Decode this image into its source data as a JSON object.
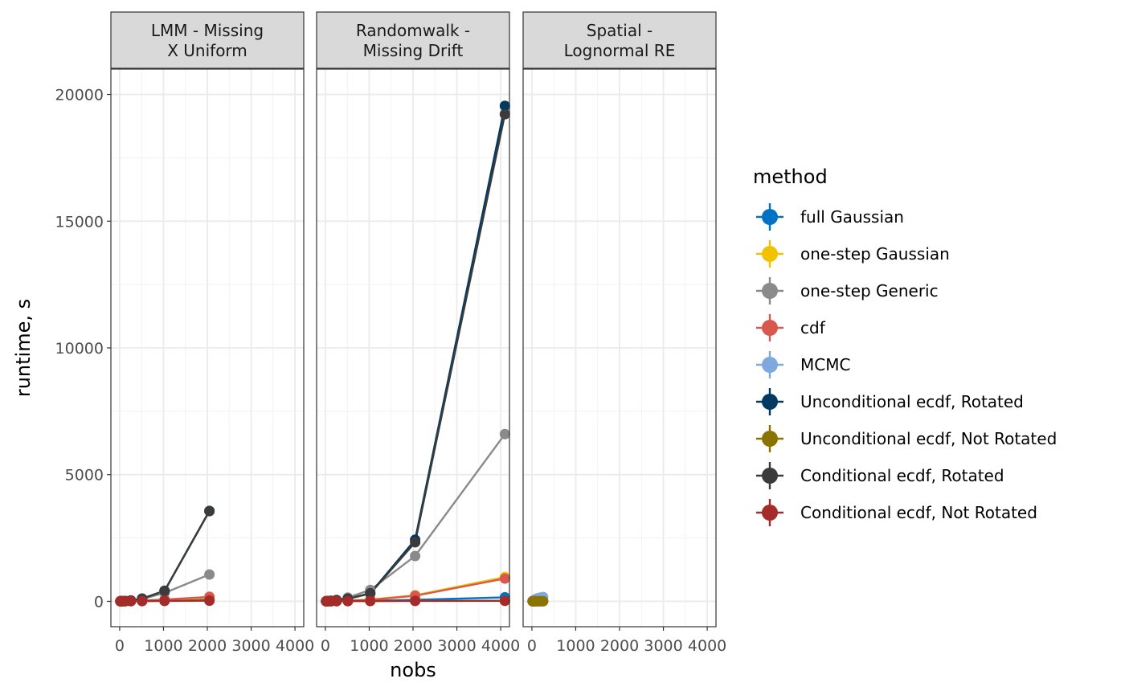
{
  "chart_data": {
    "type": "line",
    "facet_by": "scenario",
    "xlabel": "nobs",
    "ylabel": "runtime, s",
    "xlim": [
      -200,
      4200
    ],
    "ylim": [
      -1000,
      21000
    ],
    "xticks": [
      0,
      1000,
      2000,
      3000,
      4000
    ],
    "xtick_labels": [
      "0",
      "1000",
      "2000",
      "3000",
      "4000"
    ],
    "yticks": [
      0,
      5000,
      10000,
      15000,
      20000
    ],
    "ytick_labels": [
      "0",
      "5000",
      "10000",
      "15000",
      "20000"
    ],
    "grid": true,
    "legend": {
      "title": "method",
      "position": "right"
    },
    "methods": [
      {
        "name": "full Gaussian",
        "color": "#0072C6"
      },
      {
        "name": "one-step Gaussian",
        "color": "#F2C200"
      },
      {
        "name": "one-step Generic",
        "color": "#8A8A8A"
      },
      {
        "name": "cdf",
        "color": "#D9584E"
      },
      {
        "name": "MCMC",
        "color": "#7FA9DE"
      },
      {
        "name": "Unconditional ecdf, Rotated",
        "color": "#003A63"
      },
      {
        "name": "Unconditional ecdf, Not Rotated",
        "color": "#8B7300"
      },
      {
        "name": "Conditional ecdf, Rotated",
        "color": "#3B3B3B"
      },
      {
        "name": "Conditional ecdf, Not Rotated",
        "color": "#A52A2A"
      }
    ],
    "panels": [
      {
        "title_lines": [
          "LMM - Missing",
          "X Uniform"
        ],
        "series": [
          {
            "method": 0,
            "points": [
              [
                16,
                5
              ],
              [
                32,
                5
              ],
              [
                64,
                5
              ],
              [
                128,
                8
              ],
              [
                256,
                12
              ],
              [
                512,
                20
              ],
              [
                1024,
                35
              ],
              [
                2048,
                60
              ]
            ]
          },
          {
            "method": 1,
            "points": [
              [
                16,
                5
              ],
              [
                32,
                5
              ],
              [
                64,
                5
              ],
              [
                128,
                8
              ],
              [
                256,
                15
              ],
              [
                512,
                30
              ],
              [
                1024,
                60
              ],
              [
                2048,
                150
              ]
            ]
          },
          {
            "method": 2,
            "points": [
              [
                16,
                5
              ],
              [
                32,
                5
              ],
              [
                64,
                8
              ],
              [
                128,
                12
              ],
              [
                256,
                30
              ],
              [
                512,
                90
              ],
              [
                1024,
                330
              ],
              [
                2048,
                1060
              ]
            ]
          },
          {
            "method": 3,
            "points": [
              [
                16,
                5
              ],
              [
                32,
                5
              ],
              [
                64,
                5
              ],
              [
                128,
                8
              ],
              [
                256,
                15
              ],
              [
                512,
                30
              ],
              [
                1024,
                70
              ],
              [
                2048,
                180
              ]
            ]
          },
          {
            "method": 4,
            "points": [
              [
                16,
                5
              ],
              [
                32,
                5
              ],
              [
                64,
                5
              ],
              [
                128,
                5
              ],
              [
                256,
                8
              ],
              [
                512,
                10
              ],
              [
                1024,
                15
              ],
              [
                2048,
                20
              ]
            ]
          },
          {
            "method": 5,
            "points": [
              [
                16,
                5
              ],
              [
                32,
                5
              ],
              [
                64,
                8
              ],
              [
                128,
                15
              ],
              [
                256,
                35
              ],
              [
                512,
                110
              ],
              [
                1024,
                420
              ],
              [
                2048,
                3570
              ]
            ]
          },
          {
            "method": 6,
            "points": [
              [
                16,
                5
              ],
              [
                32,
                5
              ],
              [
                64,
                5
              ],
              [
                128,
                5
              ],
              [
                256,
                8
              ],
              [
                512,
                12
              ],
              [
                1024,
                20
              ],
              [
                2048,
                40
              ]
            ]
          },
          {
            "method": 7,
            "points": [
              [
                16,
                5
              ],
              [
                32,
                5
              ],
              [
                64,
                8
              ],
              [
                128,
                15
              ],
              [
                256,
                35
              ],
              [
                512,
                105
              ],
              [
                1024,
                410
              ],
              [
                2048,
                3560
              ]
            ]
          },
          {
            "method": 8,
            "points": [
              [
                16,
                5
              ],
              [
                32,
                5
              ],
              [
                64,
                5
              ],
              [
                128,
                5
              ],
              [
                256,
                8
              ],
              [
                512,
                12
              ],
              [
                1024,
                20
              ],
              [
                2048,
                30
              ]
            ]
          }
        ]
      },
      {
        "title_lines": [
          "Randomwalk -",
          "Missing Drift"
        ],
        "series": [
          {
            "method": 0,
            "points": [
              [
                16,
                5
              ],
              [
                32,
                5
              ],
              [
                64,
                5
              ],
              [
                128,
                5
              ],
              [
                256,
                8
              ],
              [
                512,
                12
              ],
              [
                1024,
                25
              ],
              [
                2048,
                60
              ],
              [
                4096,
                160
              ]
            ]
          },
          {
            "method": 1,
            "points": [
              [
                16,
                5
              ],
              [
                32,
                5
              ],
              [
                64,
                5
              ],
              [
                128,
                8
              ],
              [
                256,
                15
              ],
              [
                512,
                30
              ],
              [
                1024,
                70
              ],
              [
                2048,
                240
              ],
              [
                4096,
                960
              ]
            ]
          },
          {
            "method": 2,
            "points": [
              [
                16,
                5
              ],
              [
                32,
                8
              ],
              [
                64,
                12
              ],
              [
                128,
                25
              ],
              [
                256,
                60
              ],
              [
                512,
                150
              ],
              [
                1024,
                450
              ],
              [
                2048,
                1790
              ],
              [
                4096,
                6600
              ]
            ]
          },
          {
            "method": 3,
            "points": [
              [
                16,
                5
              ],
              [
                32,
                5
              ],
              [
                64,
                5
              ],
              [
                128,
                8
              ],
              [
                256,
                15
              ],
              [
                512,
                30
              ],
              [
                1024,
                60
              ],
              [
                2048,
                220
              ],
              [
                4096,
                900
              ]
            ]
          },
          {
            "method": 5,
            "points": [
              [
                16,
                5
              ],
              [
                32,
                8
              ],
              [
                64,
                12
              ],
              [
                128,
                20
              ],
              [
                256,
                40
              ],
              [
                512,
                100
              ],
              [
                1024,
                320
              ],
              [
                2048,
                2430
              ],
              [
                4096,
                19550
              ]
            ]
          },
          {
            "method": 6,
            "points": [
              [
                16,
                5
              ],
              [
                32,
                5
              ],
              [
                64,
                5
              ],
              [
                128,
                5
              ],
              [
                256,
                8
              ],
              [
                512,
                10
              ],
              [
                1024,
                15
              ],
              [
                2048,
                20
              ],
              [
                4096,
                25
              ]
            ]
          },
          {
            "method": 7,
            "points": [
              [
                16,
                5
              ],
              [
                32,
                8
              ],
              [
                64,
                12
              ],
              [
                128,
                20
              ],
              [
                256,
                40
              ],
              [
                512,
                100
              ],
              [
                1024,
                310
              ],
              [
                2048,
                2330
              ],
              [
                4096,
                19220
              ]
            ]
          },
          {
            "method": 8,
            "points": [
              [
                16,
                5
              ],
              [
                32,
                5
              ],
              [
                64,
                5
              ],
              [
                128,
                5
              ],
              [
                256,
                8
              ],
              [
                512,
                10
              ],
              [
                1024,
                15
              ],
              [
                2048,
                18
              ],
              [
                4096,
                22
              ]
            ]
          }
        ]
      },
      {
        "title_lines": [
          "Spatial -",
          "Lognormal RE"
        ],
        "series": [
          {
            "method": 0,
            "points": [
              [
                16,
                5
              ],
              [
                36,
                5
              ],
              [
                64,
                5
              ],
              [
                100,
                5
              ],
              [
                144,
                5
              ],
              [
                196,
                5
              ],
              [
                256,
                5
              ]
            ]
          },
          {
            "method": 1,
            "points": [
              [
                16,
                5
              ],
              [
                36,
                5
              ],
              [
                64,
                5
              ],
              [
                100,
                8
              ],
              [
                144,
                8
              ],
              [
                196,
                10
              ],
              [
                256,
                12
              ]
            ]
          },
          {
            "method": 3,
            "points": [
              [
                16,
                5
              ],
              [
                36,
                5
              ],
              [
                64,
                5
              ],
              [
                100,
                8
              ],
              [
                144,
                8
              ],
              [
                196,
                10
              ],
              [
                256,
                12
              ]
            ]
          },
          {
            "method": 4,
            "points": [
              [
                16,
                20
              ],
              [
                36,
                40
              ],
              [
                64,
                70
              ],
              [
                100,
                100
              ],
              [
                144,
                130
              ],
              [
                196,
                150
              ],
              [
                256,
                170
              ]
            ]
          },
          {
            "method": 6,
            "points": [
              [
                16,
                5
              ],
              [
                36,
                5
              ],
              [
                64,
                5
              ],
              [
                100,
                5
              ],
              [
                144,
                5
              ],
              [
                196,
                5
              ],
              [
                256,
                5
              ]
            ]
          }
        ]
      }
    ]
  }
}
